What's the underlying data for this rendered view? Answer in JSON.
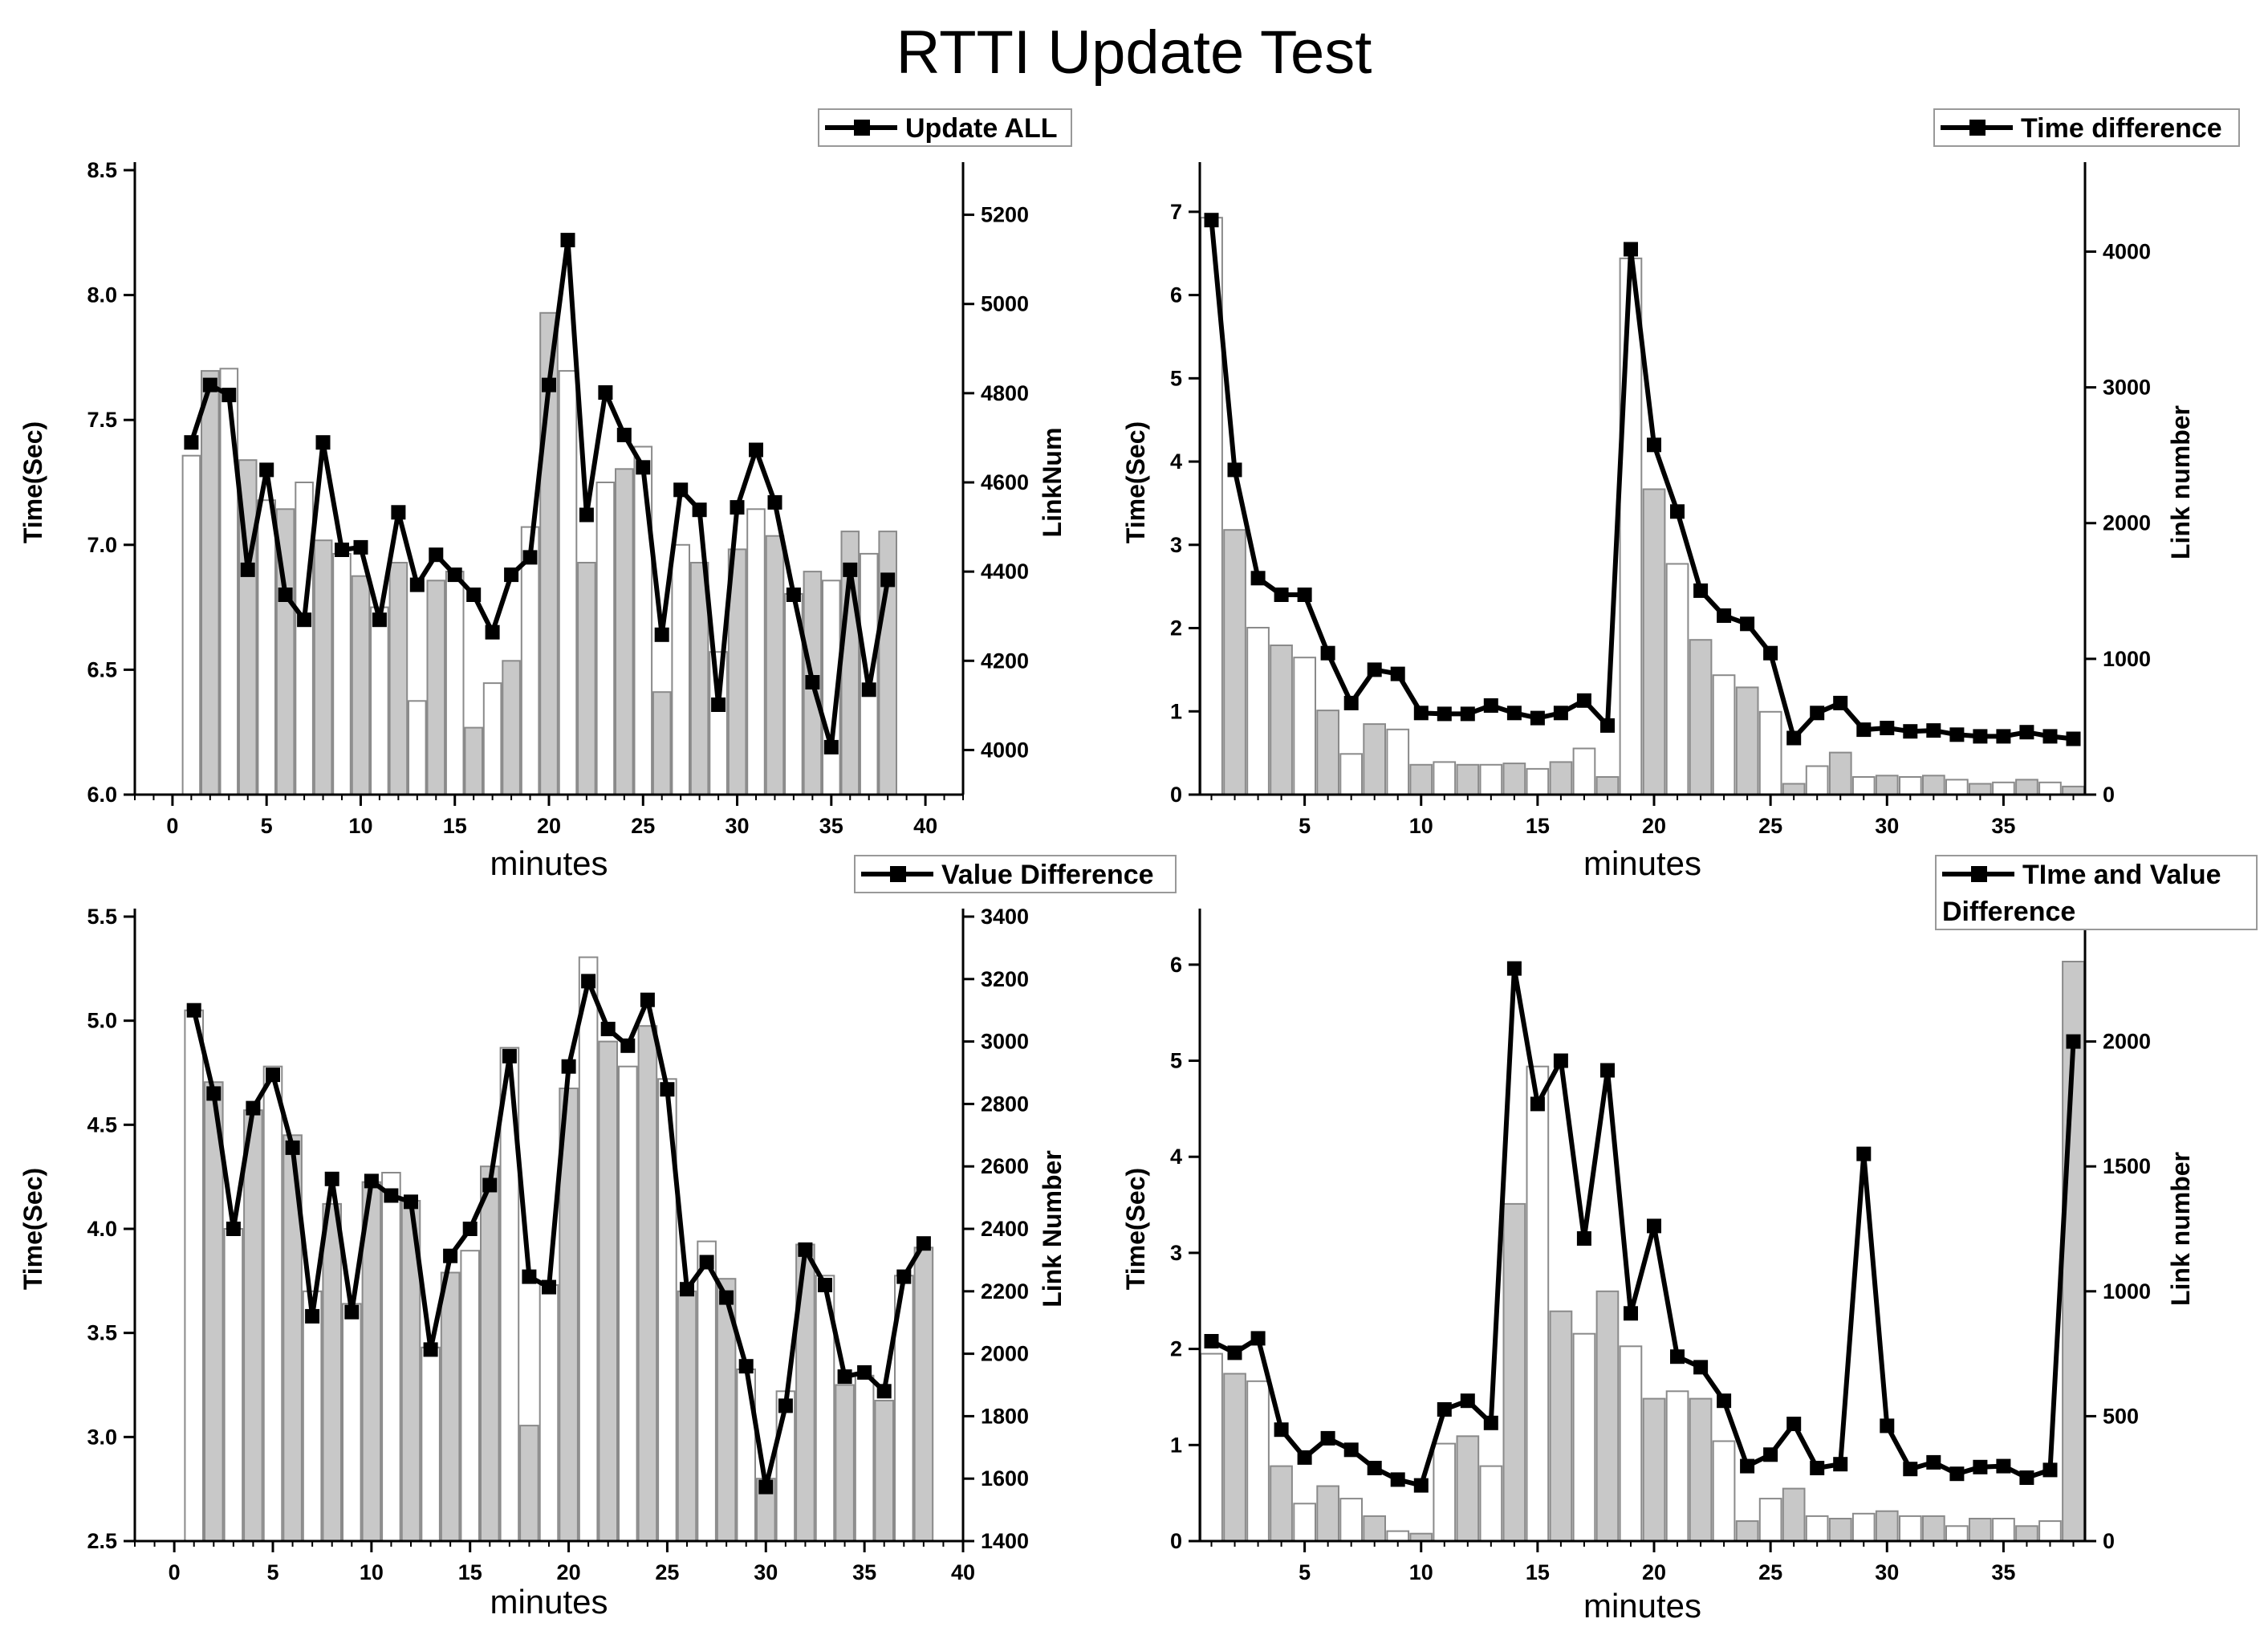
{
  "title": "RTTI Update Test",
  "chart_data": [
    {
      "type": "bar",
      "legend": "Update ALL",
      "xlabel": "minutes",
      "ylabel": "Time(Sec)",
      "y2label": "LinkNum",
      "xlim": [
        -2,
        42
      ],
      "xticks": [
        0,
        5,
        10,
        15,
        20,
        25,
        30,
        35,
        40
      ],
      "ylim": [
        6.0,
        8.5
      ],
      "yticks": [
        6.0,
        6.5,
        7.0,
        7.5,
        8.0,
        8.5
      ],
      "y2lim": [
        3900,
        5300
      ],
      "y2ticks": [
        4000,
        4200,
        4400,
        4600,
        4800,
        5000,
        5200
      ],
      "x": [
        1,
        2,
        3,
        4,
        5,
        6,
        7,
        8,
        9,
        10,
        11,
        12,
        13,
        14,
        15,
        16,
        17,
        18,
        19,
        20,
        21,
        22,
        23,
        24,
        25,
        26,
        27,
        28,
        29,
        30,
        31,
        32,
        33,
        34,
        35,
        36,
        37,
        38
      ],
      "series": [
        {
          "name": "Update ALL",
          "axis": "left",
          "style": "line",
          "values": [
            7.41,
            7.64,
            7.6,
            6.9,
            7.3,
            6.8,
            6.7,
            7.41,
            6.98,
            6.99,
            6.7,
            7.13,
            6.84,
            6.96,
            6.88,
            6.8,
            6.65,
            6.88,
            6.95,
            7.64,
            8.22,
            7.12,
            7.61,
            7.44,
            7.31,
            6.64,
            7.22,
            7.14,
            6.36,
            7.15,
            7.38,
            7.17,
            6.8,
            6.45,
            6.19,
            6.9,
            6.42,
            6.86
          ]
        },
        {
          "axis": "right",
          "style": "bar",
          "values": [
            4660,
            4850,
            4855,
            4650,
            4560,
            4540,
            4600,
            4470,
            4440,
            4390,
            4320,
            4420,
            4110,
            4380,
            4400,
            4050,
            4150,
            4200,
            4500,
            4980,
            4850,
            4420,
            4600,
            4630,
            4680,
            4130,
            4460,
            4420,
            4220,
            4450,
            4540,
            4480,
            4350,
            4400,
            4380,
            4490,
            4440,
            4490
          ]
        }
      ]
    },
    {
      "type": "bar",
      "legend": "Time difference",
      "xlabel": "minutes",
      "ylabel": "Time(Sec)",
      "y2label": "Link number",
      "xlim": [
        0.5,
        38.5
      ],
      "xticks": [
        5,
        10,
        15,
        20,
        25,
        30,
        35
      ],
      "ylim": [
        0,
        7.5
      ],
      "yticks": [
        0,
        1,
        2,
        3,
        4,
        5,
        6,
        7
      ],
      "y2lim": [
        0,
        4600
      ],
      "y2ticks": [
        0,
        1000,
        2000,
        3000,
        4000
      ],
      "x": [
        1,
        2,
        3,
        4,
        5,
        6,
        7,
        8,
        9,
        10,
        11,
        12,
        13,
        14,
        15,
        16,
        17,
        18,
        19,
        20,
        21,
        22,
        23,
        24,
        25,
        26,
        27,
        28,
        29,
        30,
        31,
        32,
        33,
        34,
        35,
        36,
        37,
        38
      ],
      "series": [
        {
          "name": "Time difference",
          "axis": "left",
          "style": "line",
          "values": [
            6.9,
            3.9,
            2.6,
            2.4,
            2.4,
            1.7,
            1.1,
            1.5,
            1.45,
            0.98,
            0.97,
            0.97,
            1.07,
            0.98,
            0.92,
            0.98,
            1.13,
            0.83,
            6.55,
            4.2,
            3.4,
            2.45,
            2.15,
            2.05,
            1.7,
            0.68,
            0.98,
            1.1,
            0.78,
            0.8,
            0.76,
            0.77,
            0.72,
            0.7,
            0.7,
            0.75,
            0.7,
            0.67
          ]
        },
        {
          "axis": "right",
          "style": "bar",
          "values": [
            4250,
            1950,
            1230,
            1100,
            1010,
            620,
            300,
            520,
            480,
            220,
            240,
            220,
            220,
            230,
            190,
            240,
            340,
            130,
            3950,
            2250,
            1700,
            1140,
            880,
            790,
            610,
            80,
            210,
            310,
            130,
            140,
            130,
            140,
            110,
            80,
            90,
            110,
            90,
            60
          ]
        }
      ]
    },
    {
      "type": "bar",
      "legend": "Value Difference",
      "xlabel": "minutes",
      "ylabel": "Time(Sec)",
      "y2label": "Link Number",
      "xlim": [
        -2,
        40
      ],
      "xticks": [
        0,
        5,
        10,
        15,
        20,
        25,
        30,
        35,
        40
      ],
      "ylim": [
        2.5,
        5.5
      ],
      "yticks": [
        2.5,
        3.0,
        3.5,
        4.0,
        4.5,
        5.0,
        5.5
      ],
      "y2lim": [
        1400,
        3400
      ],
      "y2ticks": [
        1400,
        1600,
        1800,
        2000,
        2200,
        2400,
        2600,
        2800,
        3000,
        3200,
        3400
      ],
      "x": [
        1,
        2,
        3,
        4,
        5,
        6,
        7,
        8,
        9,
        10,
        11,
        12,
        13,
        14,
        15,
        16,
        17,
        18,
        19,
        20,
        21,
        22,
        23,
        24,
        25,
        26,
        27,
        28,
        29,
        30,
        31,
        32,
        33,
        34,
        35,
        36,
        37,
        38
      ],
      "series": [
        {
          "name": "Value Difference",
          "axis": "left",
          "style": "line",
          "values": [
            5.05,
            4.65,
            4.0,
            4.58,
            4.74,
            4.39,
            3.58,
            4.24,
            3.6,
            4.23,
            4.16,
            4.13,
            3.42,
            3.87,
            4.0,
            4.21,
            4.83,
            3.77,
            3.72,
            4.78,
            5.19,
            4.96,
            4.88,
            5.1,
            4.67,
            3.71,
            3.84,
            3.67,
            3.34,
            2.76,
            3.15,
            3.9,
            3.73,
            3.29,
            3.31,
            3.22,
            3.77,
            3.93
          ]
        },
        {
          "axis": "right",
          "style": "bar",
          "values": [
            3100,
            2870,
            2400,
            2780,
            2920,
            2700,
            2200,
            2480,
            2160,
            2550,
            2580,
            2490,
            2020,
            2260,
            2330,
            2600,
            2980,
            1770,
            2220,
            2850,
            3270,
            3000,
            2920,
            3050,
            2880,
            2200,
            2360,
            2240,
            1950,
            1600,
            1880,
            2350,
            2250,
            1900,
            1930,
            1850,
            2250,
            2340
          ]
        }
      ]
    },
    {
      "type": "bar",
      "legend": "TIme and Value Difference",
      "xlabel": "minutes",
      "ylabel": "Time(Sec)",
      "y2label": "Link number",
      "xlim": [
        0.5,
        38.5
      ],
      "xticks": [
        5,
        10,
        15,
        20,
        25,
        30,
        35
      ],
      "ylim": [
        0,
        6.5
      ],
      "yticks": [
        0,
        1,
        2,
        3,
        4,
        5,
        6
      ],
      "y2lim": [
        0,
        2500
      ],
      "y2ticks": [
        0,
        500,
        1000,
        1500,
        2000,
        2500
      ],
      "x": [
        1,
        2,
        3,
        4,
        5,
        6,
        7,
        8,
        9,
        10,
        11,
        12,
        13,
        14,
        15,
        16,
        17,
        18,
        19,
        20,
        21,
        22,
        23,
        24,
        25,
        26,
        27,
        28,
        29,
        30,
        31,
        32,
        33,
        34,
        35,
        36,
        37,
        38
      ],
      "series": [
        {
          "name": "TIme and Value Difference",
          "axis": "left",
          "style": "line",
          "values": [
            2.08,
            1.96,
            2.11,
            1.16,
            0.87,
            1.07,
            0.95,
            0.76,
            0.64,
            0.58,
            1.37,
            1.46,
            1.23,
            5.96,
            4.55,
            5.0,
            3.15,
            4.9,
            2.37,
            3.28,
            1.92,
            1.81,
            1.46,
            0.78,
            0.9,
            1.22,
            0.76,
            0.8,
            4.03,
            1.2,
            0.75,
            0.82,
            0.7,
            0.77,
            0.78,
            0.66,
            0.74,
            5.2
          ]
        },
        {
          "axis": "right",
          "style": "bar",
          "values": [
            750,
            670,
            640,
            300,
            150,
            220,
            170,
            100,
            40,
            30,
            390,
            420,
            300,
            1350,
            1900,
            920,
            830,
            1000,
            780,
            570,
            600,
            570,
            400,
            80,
            170,
            210,
            100,
            90,
            110,
            120,
            100,
            100,
            60,
            90,
            90,
            60,
            80,
            2320
          ]
        }
      ]
    }
  ]
}
